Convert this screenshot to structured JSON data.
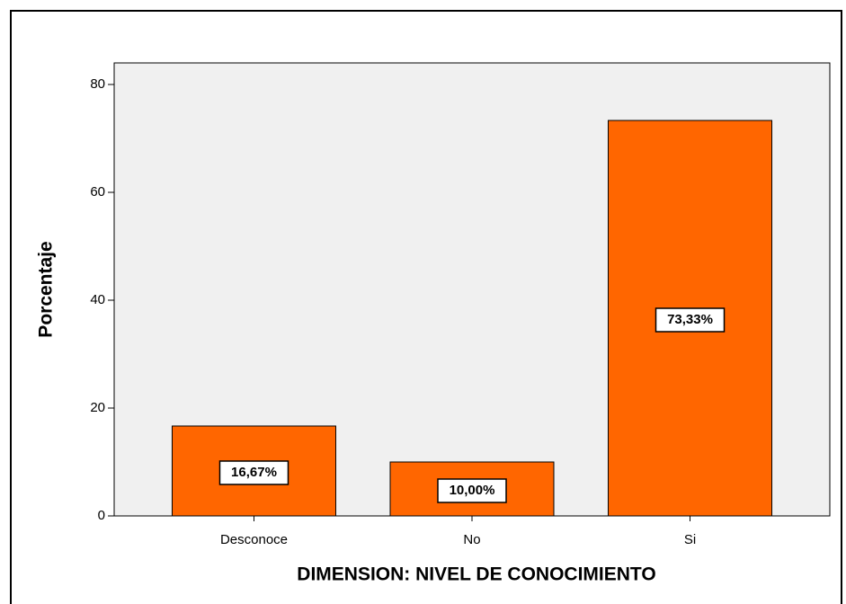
{
  "chart_data": {
    "type": "bar",
    "categories": [
      "Desconoce",
      "No",
      "Si"
    ],
    "values": [
      16.67,
      10,
      73.33
    ],
    "value_labels": [
      "16,67%",
      "10,00%",
      "73,33%"
    ],
    "color": "#ff6600",
    "xlabel": "DIMENSION: NIVEL DE CONOCIMIENTO",
    "ylabel": "Porcentaje",
    "ylim": [
      0,
      84
    ],
    "yticks": [
      0,
      20,
      40,
      60,
      80
    ],
    "grid": false
  }
}
